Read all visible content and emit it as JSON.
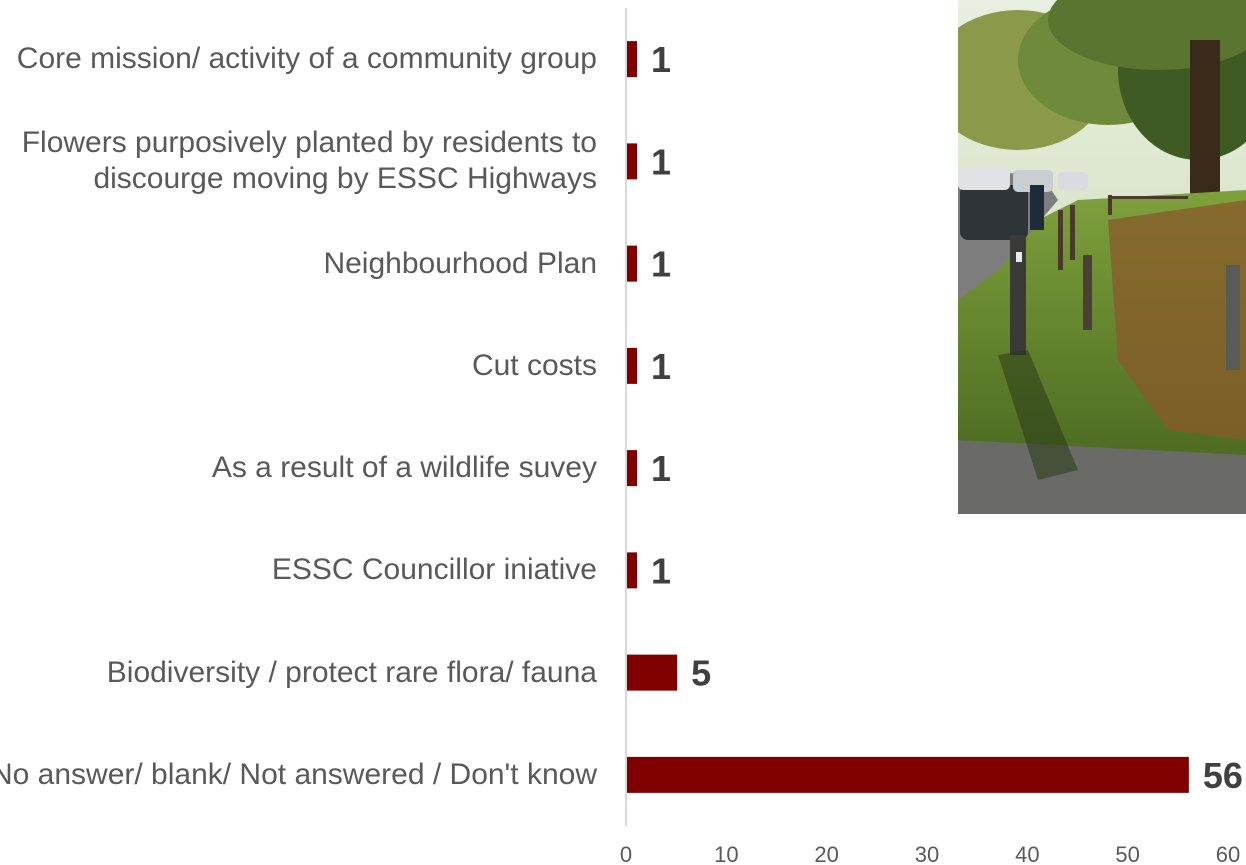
{
  "chart_data": {
    "type": "bar",
    "orientation": "horizontal",
    "categories": [
      "Core mission/ activity of a community group",
      "Flowers purposively planted by residents to discourge moving by ESSC Highways",
      "Neighbourhood Plan",
      "Cut costs",
      "As a result of a wildlife suvey",
      "ESSC Councillor iniative",
      "Biodiversity / protect rare flora/ fauna",
      "No answer/ blank/ Not answered / Don't know"
    ],
    "values": [
      1,
      1,
      1,
      1,
      1,
      1,
      5,
      56
    ],
    "data_labels": [
      "1",
      "1",
      "1",
      "1",
      "1",
      "1",
      "5",
      "56"
    ],
    "xlim": [
      0,
      60
    ],
    "x_ticks": [
      "0",
      "10",
      "20",
      "30",
      "40",
      "50",
      "60"
    ],
    "bar_color": "#800000",
    "grid": false,
    "legend": "none",
    "title": "",
    "xlabel": "",
    "ylabel": ""
  },
  "photo": {
    "subject": "roadside-verge-photo"
  },
  "colors": {
    "bar": "#800000",
    "label_text": "#595959",
    "value_text": "#404040",
    "axis_line": "#d9d9d9"
  }
}
